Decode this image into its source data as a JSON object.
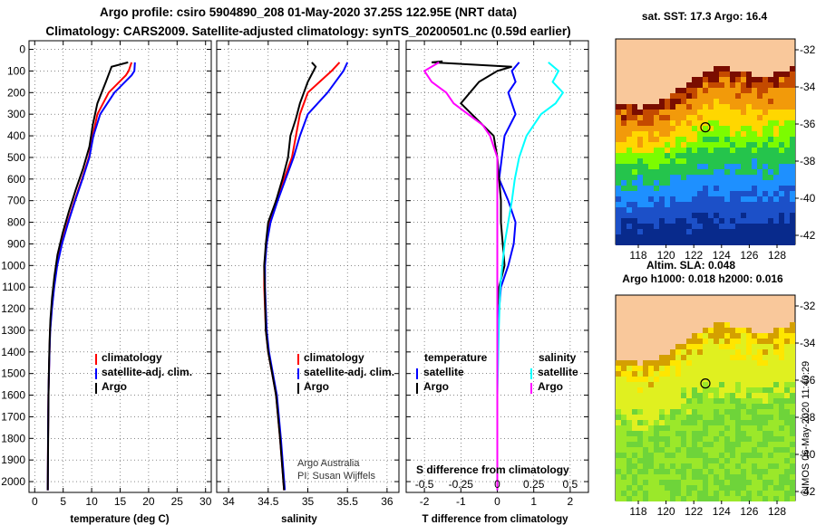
{
  "titles": {
    "line1": "Argo profile: csiro 5904890_208 01-May-2020 37.25S 122.95E (NRT data)",
    "line2": "Climatology: CARS2009. Satellite-adjusted climatology: synTS_20200501.nc (0.59d earlier)"
  },
  "colors": {
    "climatology": "#ff0000",
    "satellite_adj": "#0000ff",
    "argo": "#000000",
    "satellite_s": "#00ffff",
    "argo_s": "#ff00ff"
  },
  "panels": {
    "temperature": {
      "xlabel": "temperature (deg C)",
      "xticks": [
        "0",
        "5",
        "10",
        "15",
        "20",
        "25",
        "30"
      ],
      "legend": [
        "climatology",
        "satellite-adj. clim.",
        "Argo"
      ]
    },
    "salinity": {
      "xlabel": "salinity",
      "xticks": [
        "34",
        "34.5",
        "35",
        "35.5",
        "36"
      ],
      "legend": [
        "climatology",
        "satellite-adj. clim.",
        "Argo"
      ],
      "credit1": "Argo Australia",
      "credit2": "PI: Susan Wijffels"
    },
    "difference": {
      "xlabel": "T difference from climatology",
      "xticks": [
        "-2",
        "-1",
        "0",
        "1",
        "2"
      ],
      "s_title": "S difference from climatology",
      "s_ticks": [
        "-0.5",
        "-0.25",
        "0",
        "0.25",
        "0.5"
      ],
      "legend_t_head": "temperature",
      "legend_s_head": "salinity",
      "legend_t": [
        "satellite",
        "Argo"
      ],
      "legend_s": [
        "satellite",
        "Argo"
      ]
    }
  },
  "depth_ticks": [
    "0",
    "100",
    "200",
    "300",
    "400",
    "500",
    "600",
    "700",
    "800",
    "900",
    "1000",
    "1100",
    "1200",
    "1300",
    "1400",
    "1500",
    "1600",
    "1700",
    "1800",
    "1900",
    "2000"
  ],
  "maps": {
    "sst": {
      "title": "sat. SST: 17.3 Argo: 16.4",
      "lat_ticks": [
        "-32",
        "-34",
        "-36",
        "-38",
        "-40",
        "-42"
      ],
      "lon_ticks": [
        "118",
        "120",
        "122",
        "124",
        "126",
        "128"
      ],
      "colors": [
        "#f9c89b",
        "#7a0d00",
        "#c44a00",
        "#f29a0a",
        "#ffd700",
        "#7cfc00",
        "#25c44c",
        "#1e90ff",
        "#1c50c8",
        "#082a8c"
      ]
    },
    "sla": {
      "title1": "Altim. SLA: 0.048",
      "title2": "Argo h1000: 0.018 h2000: 0.016",
      "lat_ticks": [
        "-32",
        "-34",
        "-36",
        "-38",
        "-40",
        "-42"
      ],
      "lon_ticks": [
        "118",
        "120",
        "122",
        "124",
        "126",
        "128"
      ],
      "colors": [
        "#f9c89b",
        "#d4a000",
        "#ffe600",
        "#e0f020",
        "#9be82a",
        "#6ed43a"
      ]
    }
  },
  "stamp": "©IMOS 06-May-2020 11:40:29",
  "chart_data": [
    {
      "type": "line",
      "title": "",
      "xlabel": "temperature (deg C)",
      "ylabel": "",
      "xlim": [
        -1,
        31
      ],
      "ylim": [
        2050,
        0
      ],
      "series": [
        {
          "name": "climatology",
          "x": [
            17.0,
            16.5,
            16.0,
            13.0,
            11.0,
            10.2,
            9.5,
            8.3,
            7.0,
            5.8,
            4.7,
            3.9,
            3.4,
            3.0,
            2.7,
            2.6,
            2.5,
            2.4,
            2.35,
            2.3
          ],
          "y": [
            60,
            100,
            120,
            200,
            300,
            400,
            500,
            600,
            700,
            800,
            900,
            1000,
            1100,
            1200,
            1300,
            1400,
            1500,
            1600,
            1800,
            2040
          ]
        },
        {
          "name": "satellite-adj. clim.",
          "x": [
            17.6,
            17.5,
            17.0,
            14.0,
            11.5,
            10.3,
            9.6,
            8.4,
            7.1,
            5.9,
            4.8,
            3.95,
            3.42,
            3.02,
            2.72,
            2.6,
            2.5,
            2.4,
            2.35,
            2.3
          ],
          "y": [
            60,
            100,
            120,
            200,
            300,
            400,
            500,
            600,
            700,
            800,
            900,
            1000,
            1100,
            1200,
            1300,
            1400,
            1500,
            1600,
            1800,
            2040
          ]
        },
        {
          "name": "Argo",
          "x": [
            16.4,
            13.5,
            12.5,
            11.0,
            10.2,
            9.6,
            8.5,
            7.2,
            6.0,
            4.9,
            4.0,
            3.45,
            3.05,
            2.75,
            2.62,
            2.52,
            2.42,
            2.36,
            2.3
          ],
          "y": [
            60,
            80,
            150,
            250,
            350,
            450,
            550,
            650,
            750,
            850,
            950,
            1050,
            1150,
            1250,
            1350,
            1450,
            1600,
            1800,
            2040
          ]
        }
      ]
    },
    {
      "type": "line",
      "title": "",
      "xlabel": "salinity",
      "ylabel": "",
      "xlim": [
        33.85,
        36.15
      ],
      "ylim": [
        2050,
        0
      ],
      "series": [
        {
          "name": "climatology",
          "x": [
            35.4,
            35.3,
            35.0,
            34.9,
            34.85,
            34.8,
            34.7,
            34.6,
            34.52,
            34.48,
            34.45,
            34.45,
            34.47,
            34.5,
            34.55,
            34.6,
            34.65,
            34.7
          ],
          "y": [
            60,
            100,
            200,
            300,
            400,
            500,
            600,
            700,
            800,
            900,
            1000,
            1100,
            1300,
            1400,
            1500,
            1600,
            1800,
            2040
          ]
        },
        {
          "name": "satellite-adj. clim.",
          "x": [
            35.5,
            35.45,
            35.25,
            35.0,
            34.9,
            34.82,
            34.72,
            34.62,
            34.53,
            34.48,
            34.46,
            34.46,
            34.48,
            34.51,
            34.56,
            34.61,
            34.66,
            34.71
          ],
          "y": [
            60,
            100,
            200,
            300,
            400,
            500,
            600,
            700,
            800,
            900,
            1000,
            1100,
            1300,
            1400,
            1500,
            1600,
            1800,
            2040
          ]
        },
        {
          "name": "Argo",
          "x": [
            35.05,
            35.1,
            35.0,
            34.9,
            34.85,
            34.78,
            34.75,
            34.68,
            34.6,
            34.5,
            34.47,
            34.45,
            34.47,
            34.5,
            34.55,
            34.6,
            34.65,
            34.7
          ],
          "y": [
            60,
            80,
            150,
            250,
            320,
            400,
            500,
            600,
            700,
            800,
            900,
            1000,
            1300,
            1400,
            1500,
            1600,
            1800,
            2040
          ]
        }
      ]
    },
    {
      "type": "line",
      "title": "",
      "xlabel": "T difference from climatology",
      "ylabel": "",
      "xlim": [
        -2.5,
        2.5
      ],
      "ylim": [
        2050,
        0
      ],
      "series": [
        {
          "name": "temperature satellite",
          "x": [
            0.6,
            0.4,
            0.5,
            0.3,
            0.5,
            0.2,
            0.05,
            0.3,
            0.5,
            0.45,
            0.3,
            0.1,
            0.05,
            0.0,
            0.0,
            0.0,
            0.0
          ],
          "y": [
            60,
            100,
            150,
            200,
            300,
            400,
            600,
            700,
            800,
            900,
            1000,
            1100,
            1200,
            1300,
            1500,
            1800,
            2040
          ]
        },
        {
          "name": "temperature Argo",
          "x": [
            -1.5,
            -1.8,
            0.4,
            0.2,
            0.0,
            -0.5,
            -1.0,
            -0.1,
            0.0,
            0.1,
            0.1,
            0.15,
            0.2,
            0.05,
            0.0,
            0.0,
            0.0,
            0.0
          ],
          "y": [
            55,
            60,
            80,
            90,
            100,
            150,
            250,
            400,
            500,
            700,
            800,
            900,
            1000,
            1100,
            1200,
            1500,
            1800,
            2040
          ]
        },
        {
          "name": "salinity satellite",
          "x": [
            0.35,
            0.42,
            0.38,
            0.45,
            0.4,
            0.3,
            0.2,
            0.15,
            0.12,
            0.1,
            0.05,
            0.02,
            0.01,
            0.0,
            0.0
          ],
          "y": [
            60,
            100,
            150,
            200,
            250,
            300,
            400,
            500,
            600,
            700,
            900,
            1100,
            1300,
            1600,
            2040
          ]
        },
        {
          "name": "salinity Argo",
          "x": [
            -0.4,
            -0.5,
            -0.45,
            -0.35,
            -0.3,
            -0.2,
            -0.1,
            -0.05,
            0.0,
            0.0,
            0.0,
            0.0
          ],
          "y": [
            60,
            100,
            150,
            200,
            250,
            300,
            350,
            400,
            500,
            800,
            1200,
            2040
          ]
        }
      ]
    }
  ]
}
